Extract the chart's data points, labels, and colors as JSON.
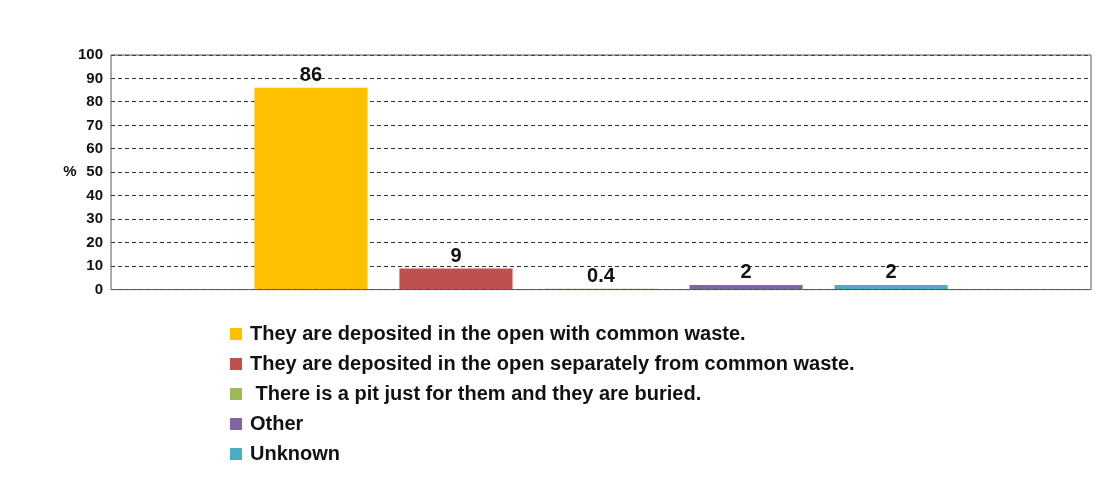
{
  "chart_data": {
    "type": "bar",
    "ylabel": "%",
    "categories": [
      null
    ],
    "series": [
      {
        "name": "They are deposited in the open with common waste.",
        "color": "#ffc000",
        "values": [
          86
        ]
      },
      {
        "name": "They are deposited in the open separately from common waste.",
        "color": "#c0504d",
        "values": [
          9
        ]
      },
      {
        "name": " There is a pit just for them and they are buried.",
        "color": "#9bbb59",
        "values": [
          0.4
        ]
      },
      {
        "name": "Other",
        "color": "#8064a2",
        "values": [
          2
        ]
      },
      {
        "name": "Unknown",
        "color": "#4bacc6",
        "values": [
          2
        ]
      }
    ],
    "ylim": [
      0,
      100
    ],
    "yticks": [
      0,
      10,
      20,
      30,
      40,
      50,
      60,
      70,
      80,
      90,
      100
    ],
    "grid": "y",
    "legend": "bottom",
    "data_labels": true
  }
}
